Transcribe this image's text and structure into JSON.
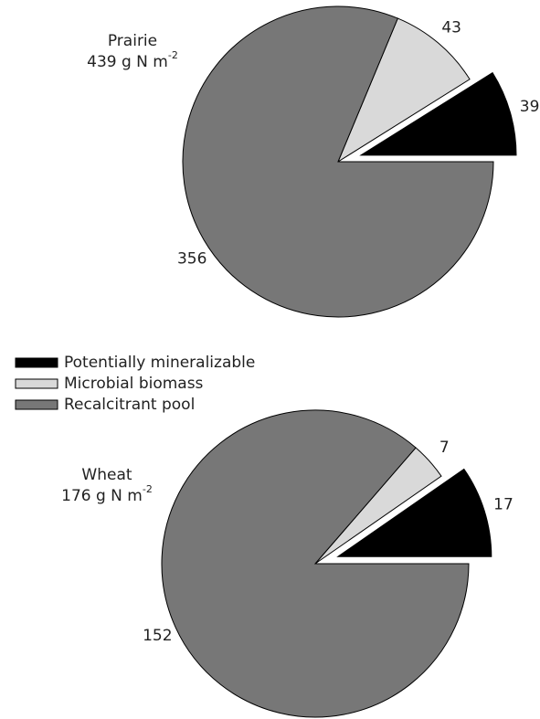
{
  "chart_data": [
    {
      "type": "pie",
      "title": "Prairie",
      "subtitle": {
        "text": "439 g N m",
        "superscript": "-2"
      },
      "categories": [
        "Potentially mineralizable",
        "Microbial biomass",
        "Recalcitrant pool"
      ],
      "values": [
        39,
        43,
        356
      ],
      "colors": [
        "#000000",
        "#d9d9d9",
        "#777777"
      ],
      "explode": [
        true,
        false,
        false
      ]
    },
    {
      "type": "pie",
      "title": "Wheat",
      "subtitle": {
        "text": "176 g N m",
        "superscript": "-2"
      },
      "categories": [
        "Potentially mineralizable",
        "Microbial biomass",
        "Recalcitrant pool"
      ],
      "values": [
        17,
        7,
        152
      ],
      "colors": [
        "#000000",
        "#d9d9d9",
        "#777777"
      ],
      "explode": [
        true,
        false,
        false
      ]
    }
  ]
}
